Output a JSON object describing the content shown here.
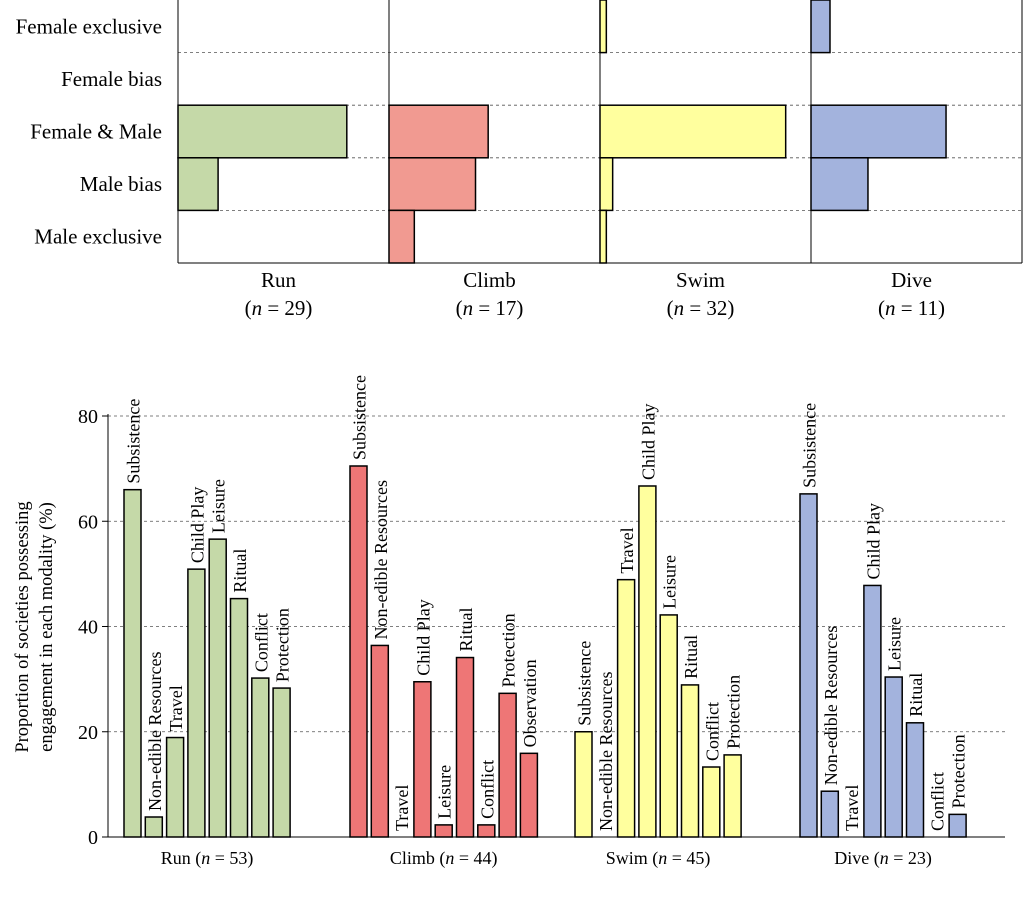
{
  "chart_data": [
    {
      "type": "bar",
      "orientation": "horizontal",
      "panel": "top",
      "row_labels": [
        "Female exclusive",
        "Female bias",
        "Female & Male",
        "Male bias",
        "Male exclusive"
      ],
      "xlim": [
        0,
        100
      ],
      "panels": [
        {
          "name": "Run",
          "n_text": "(n = 29)",
          "n": "29",
          "color": "#c5d9a8",
          "values": [
            0,
            0,
            80,
            19,
            0
          ]
        },
        {
          "name": "Climb",
          "n_text": "(n = 17)",
          "n": "17",
          "color": "#f19a91",
          "values": [
            0,
            0,
            47,
            41,
            12
          ]
        },
        {
          "name": "Swim",
          "n_text": "(n = 32)",
          "n": "32",
          "color": "#ffff9e",
          "values": [
            3,
            0,
            88,
            6,
            3
          ]
        },
        {
          "name": "Dive",
          "n_text": "(n = 11)",
          "n": "11",
          "color": "#a3b3dd",
          "values": [
            9,
            0,
            64,
            27,
            0
          ]
        }
      ]
    },
    {
      "type": "bar",
      "panel": "bottom",
      "title": "",
      "ylabel": "Proportion of societies possessing engagement in each modality (%)",
      "ylabel_lines": [
        "Proportion of societies possessing",
        "engagement in each modality (%)"
      ],
      "ylim": [
        0,
        80
      ],
      "yticks": [
        0,
        20,
        40,
        60,
        80
      ],
      "grid": "horizontal-dashed",
      "groups": [
        {
          "name": "Run",
          "label": "Run (n = 53)",
          "n": "53",
          "color": "#c5d9a8",
          "categories": [
            "Subsistence",
            "Non-edible Resources",
            "Travel",
            "Child Play",
            "Leisure",
            "Ritual",
            "Conflict",
            "Protection"
          ],
          "values": [
            66,
            3.8,
            18.9,
            50.9,
            56.6,
            45.3,
            30.2,
            28.3
          ]
        },
        {
          "name": "Climb",
          "label": "Climb (n = 44)",
          "n": "44",
          "color": "#ee7676",
          "categories": [
            "Subsistence",
            "Non-edible Resources",
            "Travel",
            "Child Play",
            "Leisure",
            "Ritual",
            "Conflict",
            "Protection",
            "Observation"
          ],
          "values": [
            70.5,
            36.4,
            0,
            29.5,
            2.3,
            34.1,
            2.3,
            27.3,
            15.9
          ]
        },
        {
          "name": "Swim",
          "label": "Swim (n = 45)",
          "n": "45",
          "color": "#ffff9e",
          "categories": [
            "Subsistence",
            "Non-edible Resources",
            "Travel",
            "Child Play",
            "Leisure",
            "Ritual",
            "Conflict",
            "Protection"
          ],
          "values": [
            20,
            0,
            48.9,
            66.7,
            42.2,
            28.9,
            13.3,
            15.6
          ]
        },
        {
          "name": "Dive",
          "label": "Dive (n = 23)",
          "n": "23",
          "color": "#a3b3dd",
          "categories": [
            "Subsistence",
            "Non-edible Resources",
            "Travel",
            "Child Play",
            "Leisure",
            "Ritual",
            "Conflict",
            "Protection"
          ],
          "values": [
            65.2,
            8.7,
            0,
            47.8,
            30.4,
            21.7,
            0,
            4.3
          ]
        }
      ]
    }
  ]
}
